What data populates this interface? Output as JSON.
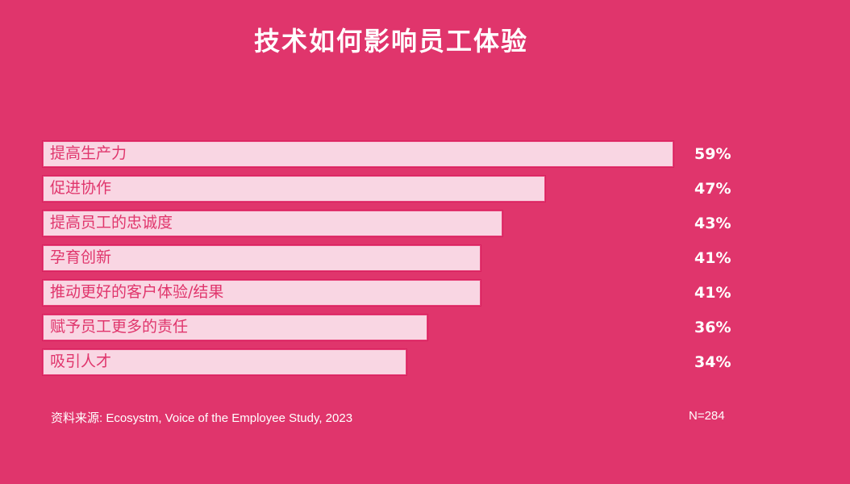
{
  "title": "技术如何影响员工体验",
  "colors": {
    "background": "#E0356C",
    "bar_fill": "#F9D6E3",
    "bar_border": "#D91F5E",
    "label_text": "#E0356C",
    "value_text": "#FFFFFF"
  },
  "bars": [
    {
      "label": "提高生产力",
      "value": 59,
      "display": "59%"
    },
    {
      "label": "促进协作",
      "value": 47,
      "display": "47%"
    },
    {
      "label": "提高员工的忠诚度",
      "value": 43,
      "display": "43%"
    },
    {
      "label": "孕育创新",
      "value": 41,
      "display": "41%"
    },
    {
      "label": "推动更好的客户体验/结果",
      "value": 41,
      "display": "41%"
    },
    {
      "label": "赋予员工更多的责任",
      "value": 36,
      "display": "36%"
    },
    {
      "label": "吸引人才",
      "value": 34,
      "display": "34%"
    }
  ],
  "footer": {
    "source": "资料来源: Ecosystm, Voice of the Employee Study, 2023",
    "sample_size": "N=284"
  },
  "chart_data": {
    "type": "bar",
    "orientation": "horizontal",
    "title": "技术如何影响员工体验",
    "categories": [
      "提高生产力",
      "促进协作",
      "提高员工的忠诚度",
      "孕育创新",
      "推动更好的客户体验/结果",
      "赋予员工更多的责任",
      "吸引人才"
    ],
    "values": [
      59,
      47,
      43,
      41,
      41,
      36,
      34
    ],
    "value_labels": [
      "59%",
      "47%",
      "43%",
      "41%",
      "41%",
      "36%",
      "34%"
    ],
    "unit": "%",
    "xlabel": "",
    "ylabel": "",
    "xlim": [
      0,
      59
    ],
    "grid": false,
    "legend": null,
    "annotations": [
      "资料来源: Ecosystm, Voice of the Employee Study, 2023",
      "N=284"
    ]
  }
}
